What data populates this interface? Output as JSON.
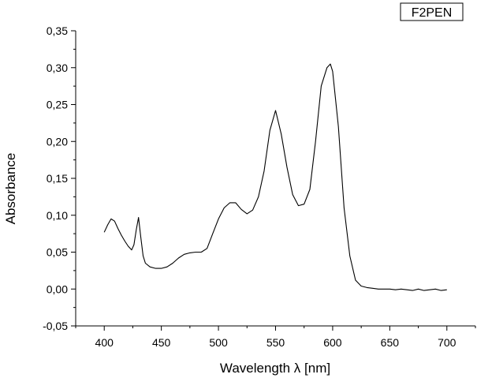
{
  "chart_data": {
    "type": "line",
    "xlabel": "Wavelength λ [nm]",
    "ylabel": "Absorbance",
    "xlim": [
      375,
      725
    ],
    "ylim": [
      -0.05,
      0.35
    ],
    "x_ticks": [
      400,
      450,
      500,
      550,
      600,
      650,
      700
    ],
    "x_tick_labels": [
      "400",
      "450",
      "500",
      "550",
      "600",
      "650",
      "700"
    ],
    "y_ticks": [
      -0.05,
      0.0,
      0.05,
      0.1,
      0.15,
      0.2,
      0.25,
      0.3,
      0.35
    ],
    "y_tick_labels": [
      "-0,05",
      "0,00",
      "0,05",
      "0,10",
      "0,15",
      "0,20",
      "0,25",
      "0,30",
      "0,35"
    ],
    "grid": false,
    "legend_position": "top-right",
    "series": [
      {
        "name": "F2PEN",
        "color": "#000000",
        "x": [
          400,
          403,
          406,
          409,
          412,
          415,
          418,
          421,
          424,
          426,
          428,
          430,
          432,
          434,
          436,
          440,
          445,
          450,
          455,
          460,
          465,
          470,
          475,
          480,
          485,
          490,
          495,
          500,
          505,
          510,
          515,
          520,
          525,
          530,
          535,
          540,
          545,
          550,
          555,
          560,
          565,
          570,
          575,
          580,
          585,
          590,
          595,
          598,
          600,
          605,
          610,
          615,
          620,
          625,
          630,
          635,
          640,
          645,
          650,
          655,
          660,
          665,
          670,
          675,
          680,
          685,
          690,
          695,
          700
        ],
        "y": [
          0.077,
          0.087,
          0.095,
          0.092,
          0.082,
          0.073,
          0.065,
          0.058,
          0.053,
          0.06,
          0.08,
          0.097,
          0.07,
          0.045,
          0.035,
          0.03,
          0.028,
          0.028,
          0.03,
          0.035,
          0.042,
          0.047,
          0.049,
          0.05,
          0.05,
          0.055,
          0.075,
          0.095,
          0.11,
          0.117,
          0.117,
          0.108,
          0.102,
          0.107,
          0.125,
          0.16,
          0.215,
          0.242,
          0.21,
          0.165,
          0.128,
          0.113,
          0.115,
          0.135,
          0.2,
          0.275,
          0.3,
          0.305,
          0.295,
          0.22,
          0.11,
          0.045,
          0.012,
          0.004,
          0.002,
          0.001,
          0.0,
          0.0,
          0.0,
          -0.001,
          0.0,
          -0.001,
          -0.002,
          0.0,
          -0.002,
          -0.001,
          0.0,
          -0.002,
          -0.001
        ]
      }
    ]
  }
}
